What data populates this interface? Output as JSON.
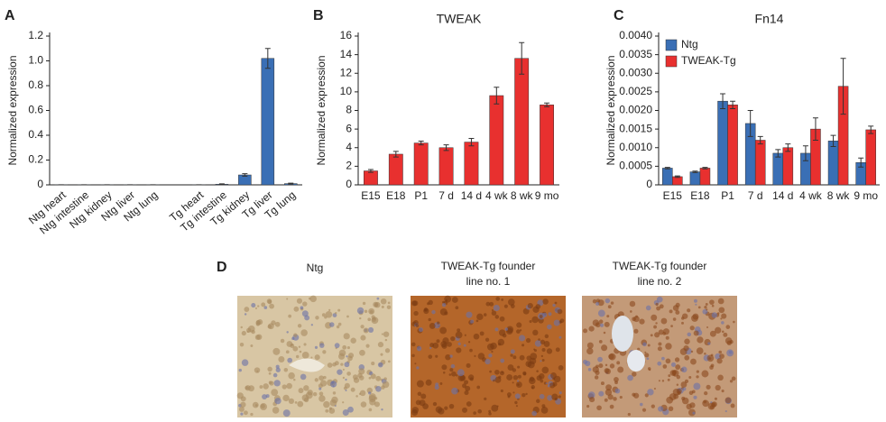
{
  "chart_data": [
    {
      "type": "bar",
      "panel": "A",
      "ylabel": "Normalized expression",
      "color": "#3a6fb5",
      "categories": [
        "Ntg heart",
        "Ntg intestine",
        "Ntg kidney",
        "Ntg liver",
        "Ntg lung",
        null,
        "Tg heart",
        "Tg intestine",
        "Tg kidney",
        "Tg liver",
        "Tg lung"
      ],
      "values": [
        0.001,
        0.001,
        0.001,
        0.001,
        0.001,
        null,
        0.001,
        0.005,
        0.08,
        1.02,
        0.01
      ],
      "errors": [
        0,
        0,
        0,
        0,
        0,
        null,
        0,
        0.003,
        0.01,
        0.08,
        0.004
      ],
      "ylim": [
        0,
        1.2
      ],
      "yticks": [
        0,
        0.2,
        0.4,
        0.6,
        0.8,
        {
          "value": 1,
          "label": "1.0"
        },
        1.2
      ]
    },
    {
      "type": "bar",
      "panel": "B",
      "title": "TWEAK",
      "ylabel": "Normalized expression",
      "color": "#e8302f",
      "categories": [
        "E15",
        "E18",
        "P1",
        "7 d",
        "14 d",
        "4 wk",
        "8 wk",
        "9 mo"
      ],
      "values": [
        1.5,
        3.3,
        4.5,
        4.0,
        4.6,
        9.6,
        13.6,
        8.6
      ],
      "errors": [
        0.15,
        0.3,
        0.2,
        0.3,
        0.4,
        0.9,
        1.7,
        0.2
      ],
      "ylim": [
        0,
        16
      ],
      "yticks": [
        0,
        2,
        4,
        6,
        8,
        10,
        12,
        14,
        16
      ]
    },
    {
      "type": "bar",
      "panel": "C",
      "title": "Fn14",
      "ylabel": "Normalized expression",
      "legend": "upper left",
      "categories": [
        "E15",
        "E18",
        "P1",
        "7 d",
        "14 d",
        "4 wk",
        "8 wk",
        "9 mo"
      ],
      "series": [
        {
          "name": "Ntg",
          "color": "#3a6fb5",
          "values": [
            0.00045,
            0.00035,
            0.00225,
            0.00165,
            0.00085,
            0.00085,
            0.00118,
            0.0006
          ],
          "errors": [
            2e-05,
            2e-05,
            0.0002,
            0.00035,
            0.0001,
            0.0002,
            0.00015,
            0.00012
          ]
        },
        {
          "name": "TWEAK-Tg",
          "color": "#e8302f",
          "values": [
            0.00022,
            0.00045,
            0.00215,
            0.0012,
            0.001,
            0.0015,
            0.00265,
            0.00148
          ],
          "errors": [
            2e-05,
            2e-05,
            0.0001,
            0.0001,
            0.0001,
            0.0003,
            0.00075,
            0.0001
          ]
        }
      ],
      "ylim": [
        0,
        0.004
      ],
      "yticks": [
        0,
        0.0005,
        {
          "value": 0.001,
          "label": "0.0010"
        },
        0.0015,
        {
          "value": 0.002,
          "label": "0.0020"
        },
        0.0025,
        {
          "value": 0.003,
          "label": "0.0030"
        },
        0.0035,
        {
          "value": 0.004,
          "label": "0.0040"
        }
      ]
    }
  ],
  "images": {
    "panel": "D",
    "items": [
      {
        "label": [
          "Ntg"
        ]
      },
      {
        "label": [
          "TWEAK-Tg founder",
          "line no. 1"
        ]
      },
      {
        "label": [
          "TWEAK-Tg founder",
          "line no. 2"
        ]
      }
    ]
  }
}
